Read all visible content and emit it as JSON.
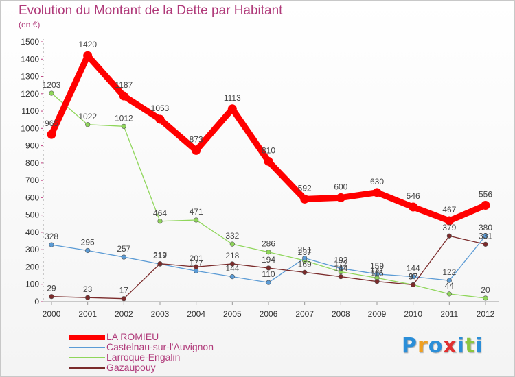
{
  "chart_data": {
    "type": "line",
    "title": "Evolution du Montant de la Dette par Habitant",
    "subtitle": "(en €)",
    "categories": [
      "2000",
      "2001",
      "2002",
      "2003",
      "2004",
      "2005",
      "2006",
      "2007",
      "2008",
      "2009",
      "2010",
      "2011",
      "2012"
    ],
    "ylim": [
      0,
      1500
    ],
    "yticks": [
      0,
      100,
      200,
      300,
      400,
      500,
      600,
      700,
      800,
      900,
      1000,
      1100,
      1200,
      1300,
      1400,
      1500
    ],
    "grid": false,
    "legend_position": "bottom-left",
    "series": [
      {
        "name": "LA ROMIEU",
        "color": "#ff0000",
        "values": [
          965,
          1420,
          1187,
          1053,
          873,
          1113,
          810,
          592,
          600,
          630,
          546,
          467,
          556
        ],
        "labels": [
          "965",
          "1420",
          "1187",
          "1053",
          "873",
          "1113",
          "810",
          "592",
          "600",
          "630",
          "546",
          "467",
          "556"
        ]
      },
      {
        "name": "Castelnau-sur-l'Auvignon",
        "color": "#5b9bd5",
        "values": [
          328,
          295,
          257,
          217,
          177,
          144,
          110,
          251,
          192,
          159,
          144,
          122,
          380
        ],
        "labels": [
          "328",
          "295",
          "257",
          "217",
          "177",
          "144",
          "110",
          "251",
          "192",
          "159",
          "144",
          "122",
          "380"
        ]
      },
      {
        "name": "Larroque-Engalin",
        "color": "#8fd65a",
        "values": [
          1203,
          1022,
          1012,
          464,
          471,
          332,
          286,
          237,
          172,
          137,
          97,
          44,
          20
        ],
        "labels": [
          "1203",
          "1022",
          "1012",
          "464",
          "471",
          "332",
          "286",
          "237",
          "172",
          "137",
          "97",
          "44",
          "20"
        ]
      },
      {
        "name": "Gazaupouy",
        "color": "#7b2b2b",
        "values": [
          29,
          23,
          17,
          219,
          201,
          218,
          194,
          169,
          144,
          116,
          97,
          379,
          331
        ],
        "labels": [
          "29",
          "23",
          "17",
          "219",
          "201",
          "218",
          "194",
          "169",
          "144",
          "116",
          "97",
          "379",
          "331"
        ]
      }
    ]
  },
  "brand": {
    "letters": [
      "P",
      "r",
      "o",
      "x",
      "i",
      "t",
      "i"
    ],
    "colors": [
      "#2b8ed8",
      "#f0a020",
      "#2b8ed8",
      "#e03030",
      "#2b8ed8",
      "#8cc63f",
      "#2b8ed8"
    ]
  }
}
